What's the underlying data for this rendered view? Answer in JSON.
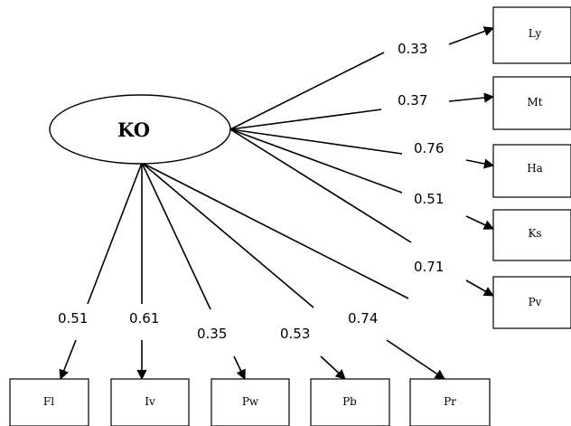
{
  "latent": {
    "label": "KO"
  },
  "indicators_right": [
    {
      "label": "Ly",
      "loading": "0.33"
    },
    {
      "label": "Mt",
      "loading": "0.37"
    },
    {
      "label": "Ha",
      "loading": "0.76"
    },
    {
      "label": "Ks",
      "loading": "0.51"
    },
    {
      "label": "Pv",
      "loading": "0.71"
    }
  ],
  "indicators_bottom": [
    {
      "label": "Fl",
      "loading": "0.51"
    },
    {
      "label": "Iv",
      "loading": "0.61"
    },
    {
      "label": "Pw",
      "loading": "0.35"
    },
    {
      "label": "Pb",
      "loading": "0.53"
    },
    {
      "label": "Pr",
      "loading": "0.74"
    }
  ]
}
